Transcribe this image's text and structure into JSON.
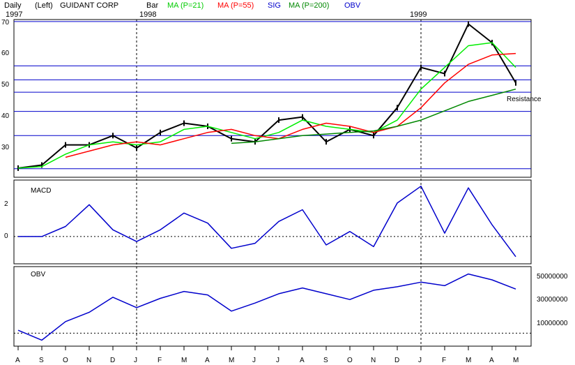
{
  "header": {
    "period": "Daily",
    "axis_side": "(Left)",
    "company": "GUIDANT CORP",
    "year_start": "1997",
    "year_1998": "1998",
    "year_1999": "1999",
    "bar_label": "Bar",
    "legend": [
      {
        "text": "MA (P=21)",
        "color": "#00ee00"
      },
      {
        "text": "MA (P=55)",
        "color": "#ff0000"
      },
      {
        "text": "SIG",
        "color": "#0000cc"
      },
      {
        "text": "MA (P=200)",
        "color": "#008800"
      },
      {
        "text": "OBV",
        "color": "#0000cc"
      }
    ]
  },
  "months": [
    "A",
    "S",
    "O",
    "N",
    "D",
    "J",
    "F",
    "M",
    "A",
    "M",
    "J",
    "J",
    "A",
    "S",
    "O",
    "N",
    "D",
    "J",
    "F",
    "M",
    "A",
    "M"
  ],
  "price_panel": {
    "y_ticks": [
      "70",
      "60",
      "50",
      "40",
      "30"
    ],
    "annotation": "Resistance"
  },
  "macd_panel": {
    "title": "MACD",
    "y_ticks": [
      "2",
      "0"
    ]
  },
  "obv_panel": {
    "title": "OBV",
    "y_ticks": [
      "50000000",
      "30000000",
      "10000000"
    ]
  },
  "chart_data": [
    {
      "type": "line",
      "title": "GUIDANT CORP Daily",
      "x": [
        "Aug-97",
        "Sep-97",
        "Oct-97",
        "Nov-97",
        "Dec-97",
        "Jan-98",
        "Feb-98",
        "Mar-98",
        "Apr-98",
        "May-98",
        "Jun-98",
        "Jul-98",
        "Aug-98",
        "Sep-98",
        "Oct-98",
        "Nov-98",
        "Dec-98",
        "Jan-99",
        "Feb-99",
        "Mar-99",
        "Apr-99",
        "May-99"
      ],
      "ylim": [
        20,
        70
      ],
      "series": [
        {
          "name": "Price",
          "color": "#000000",
          "values": [
            22.5,
            23.5,
            30,
            30,
            33,
            29,
            34,
            37,
            36,
            32,
            31,
            38,
            39,
            31,
            35,
            33,
            42,
            55,
            53,
            69,
            63,
            50
          ]
        },
        {
          "name": "MA (P=21)",
          "color": "#00ee00",
          "values": [
            22.5,
            23,
            27,
            30,
            31,
            30,
            31,
            35,
            36,
            34,
            32,
            34,
            38,
            36,
            35,
            34,
            38,
            48,
            55,
            62,
            63,
            55
          ]
        },
        {
          "name": "MA (P=55)",
          "color": "#ff0000",
          "values": [
            null,
            null,
            26,
            28,
            30,
            31,
            30,
            32,
            34,
            35,
            33,
            32,
            35,
            37,
            36,
            34,
            36,
            42,
            50,
            56,
            59,
            59.5
          ]
        },
        {
          "name": "MA (P=200)",
          "color": "#008800",
          "values": [
            null,
            null,
            null,
            null,
            null,
            null,
            null,
            null,
            null,
            30.5,
            31,
            32,
            33,
            33.5,
            34,
            34.5,
            36,
            38,
            41,
            44,
            46,
            48
          ]
        }
      ],
      "horizontal_lines": [
        69.8,
        55.5,
        51,
        47,
        40.8,
        33,
        22.3
      ],
      "grid": false
    },
    {
      "type": "line",
      "title": "MACD",
      "x": [
        "Aug-97",
        "Sep-97",
        "Oct-97",
        "Nov-97",
        "Dec-97",
        "Jan-98",
        "Feb-98",
        "Mar-98",
        "Apr-98",
        "May-98",
        "Jun-98",
        "Jul-98",
        "Aug-98",
        "Sep-98",
        "Oct-98",
        "Nov-98",
        "Dec-98",
        "Jan-99",
        "Feb-99",
        "Mar-99",
        "Apr-99",
        "May-99"
      ],
      "ylim": [
        -1.5,
        3.2
      ],
      "series": [
        {
          "name": "MACD",
          "color": "#0000cc",
          "values": [
            0.0,
            0.0,
            0.6,
            1.9,
            0.4,
            -0.3,
            0.4,
            1.4,
            0.8,
            -0.7,
            -0.4,
            0.9,
            1.6,
            -0.5,
            0.3,
            -0.6,
            2.0,
            3.0,
            0.2,
            2.9,
            0.7,
            -1.2
          ]
        }
      ],
      "zero_line": 0
    },
    {
      "type": "line",
      "title": "OBV",
      "x": [
        "Aug-97",
        "Sep-97",
        "Oct-97",
        "Nov-97",
        "Dec-97",
        "Jan-98",
        "Feb-98",
        "Mar-98",
        "Apr-98",
        "May-98",
        "Jun-98",
        "Jul-98",
        "Aug-98",
        "Sep-98",
        "Oct-98",
        "Nov-98",
        "Dec-98",
        "Jan-99",
        "Feb-99",
        "Mar-99",
        "Apr-99",
        "May-99"
      ],
      "ylim": [
        -10000000,
        55000000
      ],
      "series": [
        {
          "name": "OBV",
          "color": "#0000cc",
          "values": [
            2500000,
            -6000000,
            10000000,
            18000000,
            31000000,
            22000000,
            30000000,
            36000000,
            33000000,
            19000000,
            26000000,
            34000000,
            39000000,
            34000000,
            29000000,
            37000000,
            40000000,
            44000000,
            41000000,
            51000000,
            46000000,
            38000000
          ]
        }
      ]
    }
  ]
}
